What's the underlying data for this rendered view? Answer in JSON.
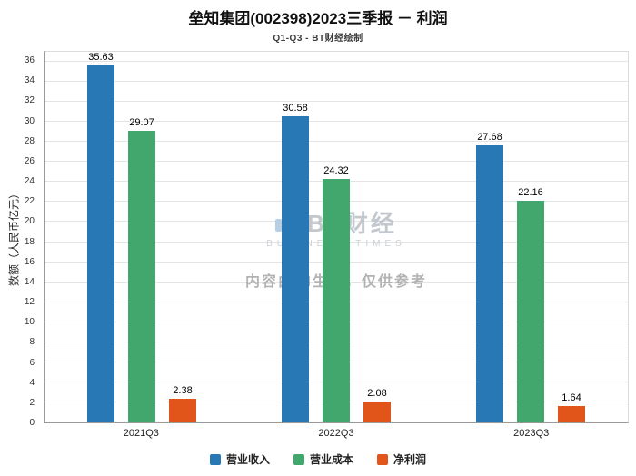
{
  "header": {
    "title": "垒知集团(002398)2023三季报 － 利润",
    "subtitle": "Q1-Q3 - BT财经绘制"
  },
  "watermark": {
    "brand": "BT财经",
    "brand_sub": "BUSINESS TIMES",
    "disclaimer": "内容由AI生成，仅供参考"
  },
  "chart_data": {
    "type": "bar",
    "categories": [
      "2021Q3",
      "2022Q3",
      "2023Q3"
    ],
    "series": [
      {
        "name": "营业收入",
        "color": "#2878B5",
        "values": [
          35.63,
          30.58,
          27.68
        ]
      },
      {
        "name": "营业成本",
        "color": "#41A76D",
        "values": [
          29.07,
          24.32,
          22.16
        ]
      },
      {
        "name": "净利润",
        "color": "#E1551A",
        "values": [
          2.38,
          2.08,
          1.64
        ]
      }
    ],
    "title": "垒知集团(002398)2023三季报 － 利润",
    "xlabel": "",
    "ylabel": "数额（人民币亿元）",
    "ylim": [
      0,
      37
    ],
    "ytick_step": 2,
    "grid": true,
    "legend_position": "bottom",
    "value_label_decimals": 2
  }
}
